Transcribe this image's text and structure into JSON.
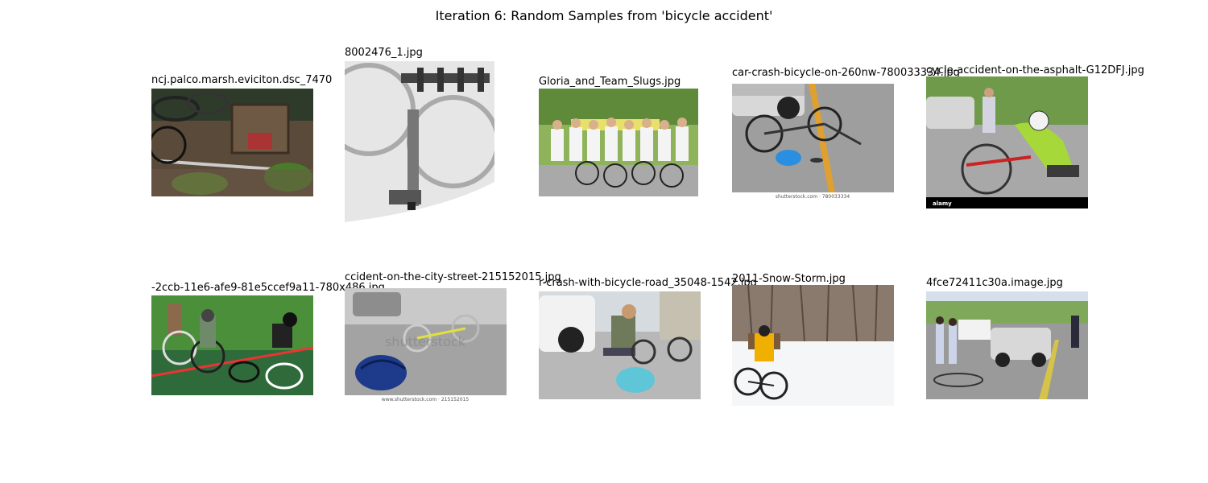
{
  "figure": {
    "title": "Iteration 6: Random Samples from 'bicycle accident'"
  },
  "samples": [
    {
      "title": "ncj.palco.marsh.eviciton.dsc_7470",
      "watermark": ""
    },
    {
      "title": "8002476_1.jpg",
      "watermark": ""
    },
    {
      "title": "Gloria_and_Team_Slugs.jpg",
      "watermark": ""
    },
    {
      "title": "car-crash-bicycle-on-260nw-780033334.jpg",
      "watermark": "shutterstock.com · 780033334"
    },
    {
      "title": "cycle-accident-on-the-asphalt-G12DFJ.jpg",
      "watermark": "alamy"
    },
    {
      "title": "-2ccb-11e6-afe9-81e5ccef9a11-780x486.jpg",
      "watermark": ""
    },
    {
      "title": "ccident-on-the-city-street-215152015.jpg",
      "watermark": "www.shutterstock.com · 215152015"
    },
    {
      "title": "r-crash-with-bicycle-road_35048-1542.jpg",
      "watermark": ""
    },
    {
      "title": "2011-Snow-Storm.jpg",
      "watermark": ""
    },
    {
      "title": "4fce72411c30a.image.jpg",
      "watermark": ""
    }
  ]
}
